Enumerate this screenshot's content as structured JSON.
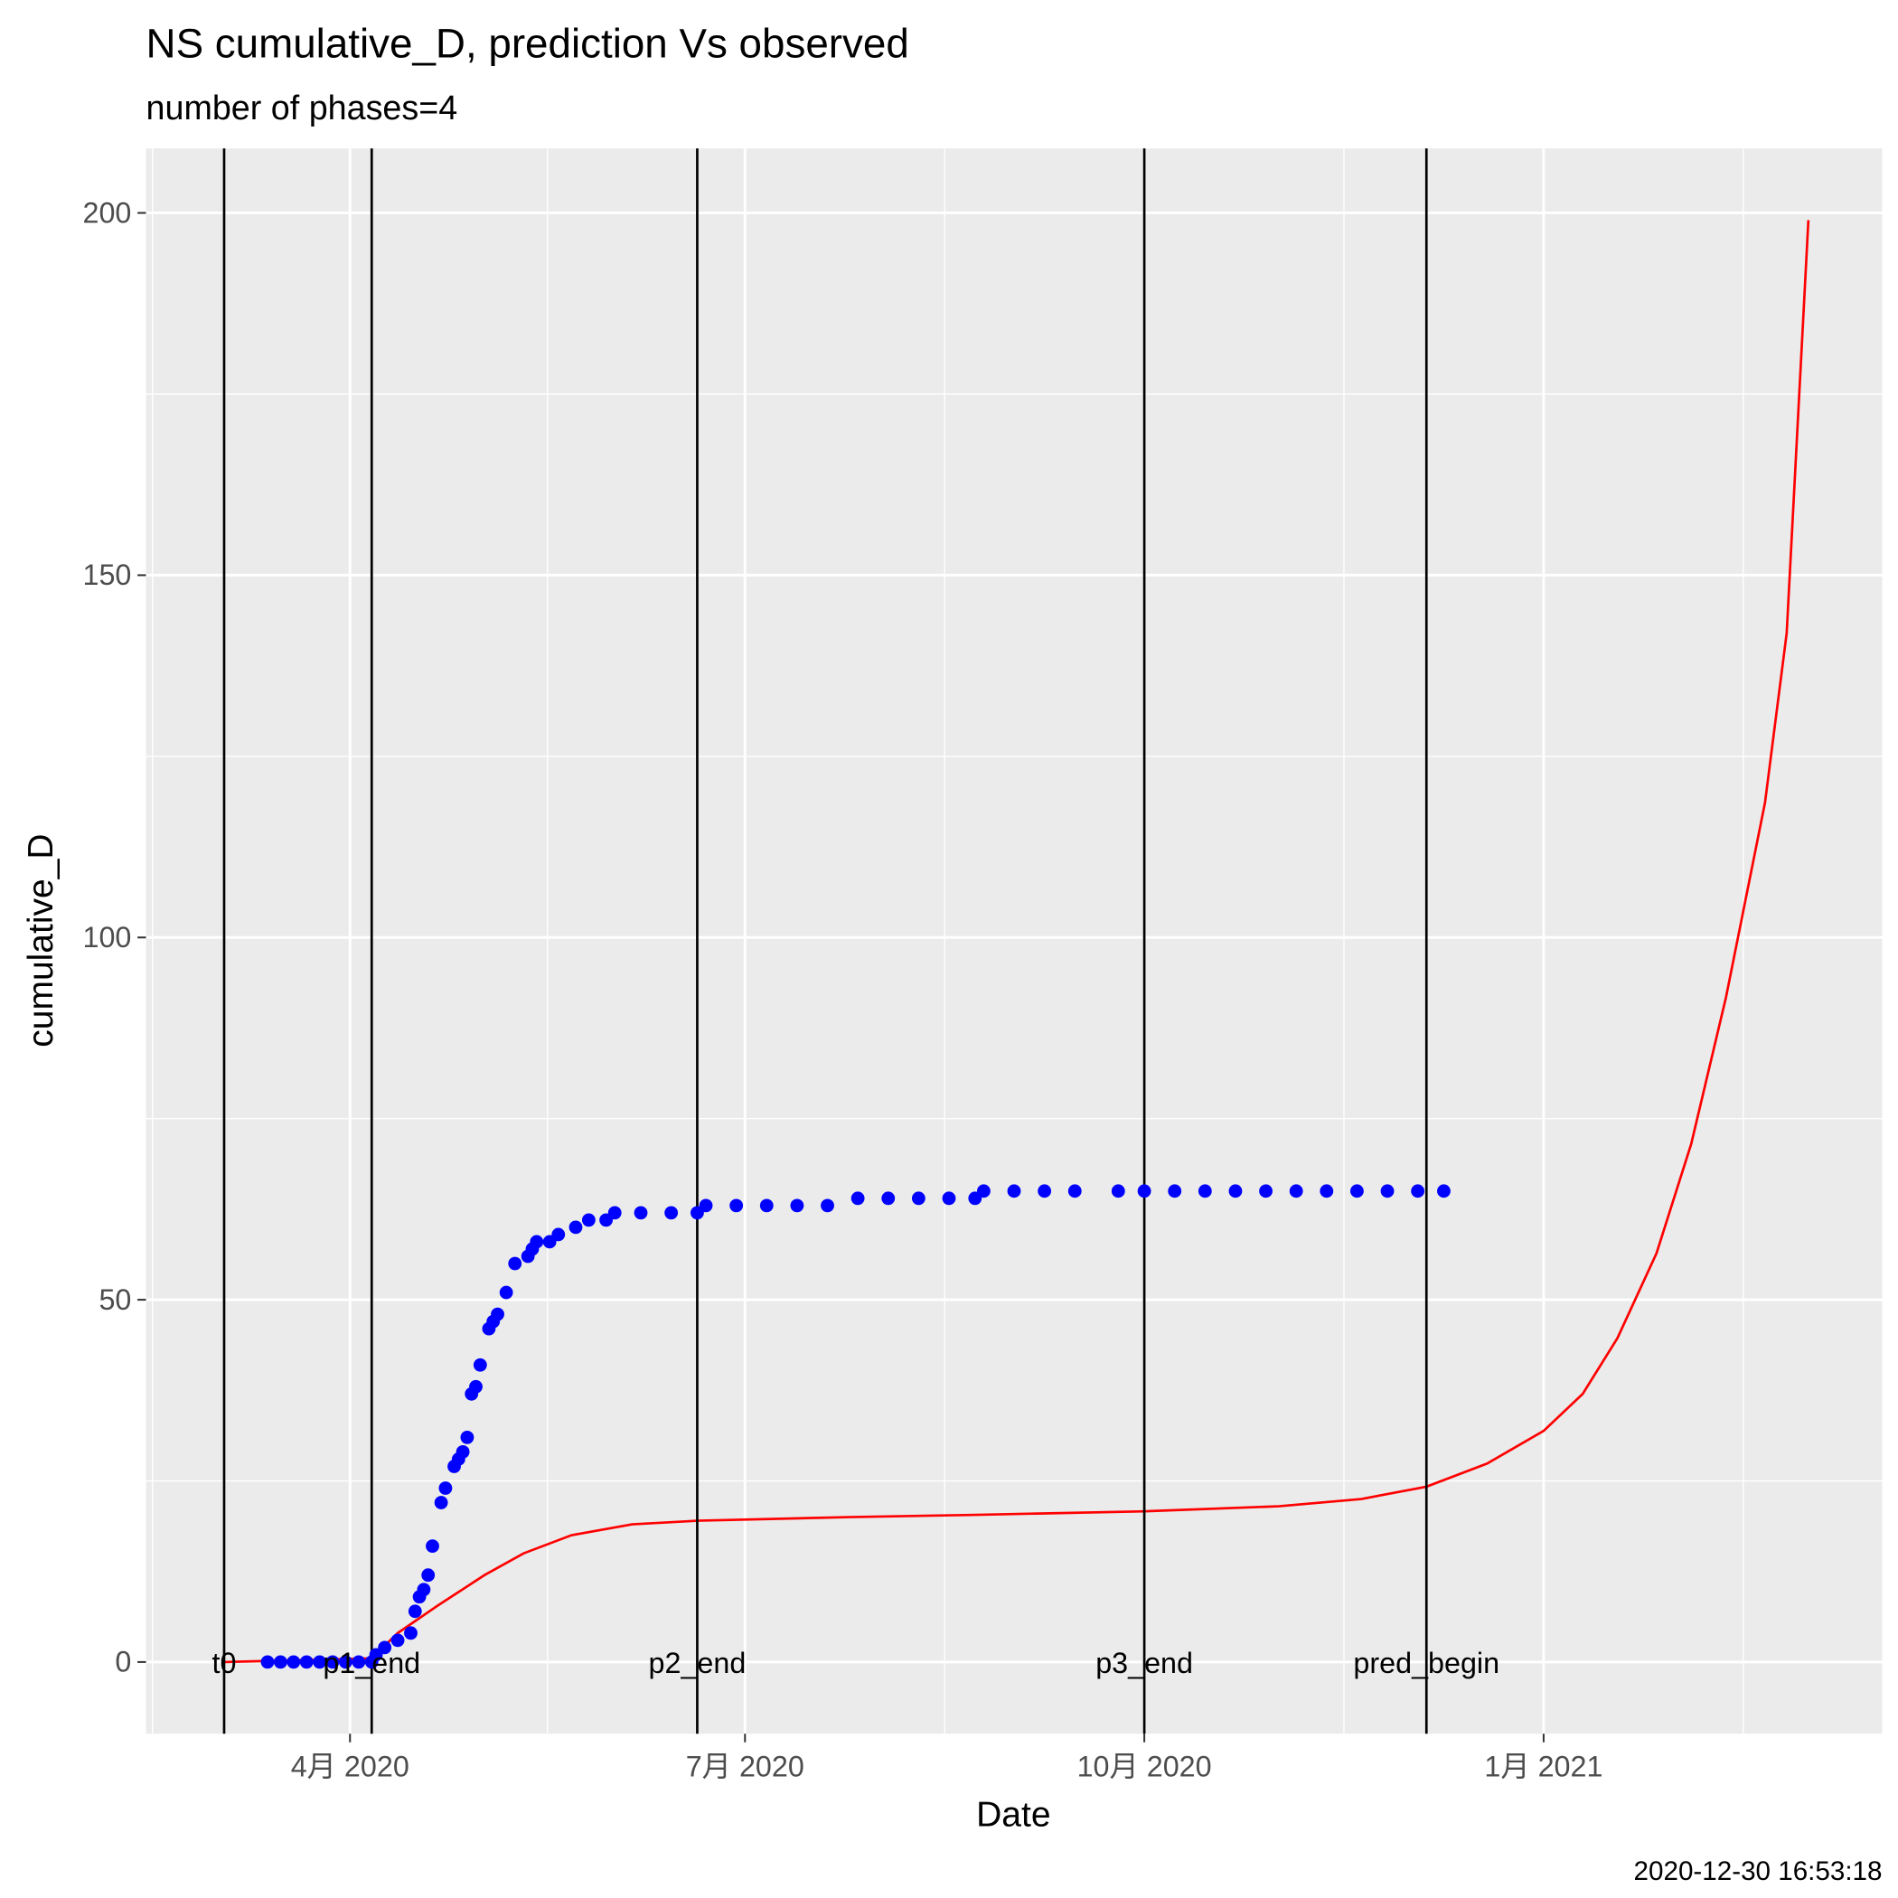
{
  "chart_data": {
    "type": "line",
    "title": "NS cumulative_D,  prediction Vs observed",
    "subtitle": "number of phases=4",
    "x_label": "Date",
    "y_label": "cumulative_D",
    "caption": "2020-12-30 16:53:18",
    "grid": true,
    "xlim": [
      "2020-02-14",
      "2021-03-20"
    ],
    "xticks": [
      {
        "value": "2020-04-01",
        "label": "4月 2020"
      },
      {
        "value": "2020-07-01",
        "label": "7月 2020"
      },
      {
        "value": "2020-10-01",
        "label": "10月 2020"
      },
      {
        "value": "2021-01-01",
        "label": "1月 2021"
      }
    ],
    "ylim": [
      -9.9,
      208.9
    ],
    "yticks": [
      0,
      50,
      100,
      150,
      200
    ],
    "vlines": [
      {
        "x": "2020-03-03",
        "label": "t0"
      },
      {
        "x": "2020-04-06",
        "label": "p1_end"
      },
      {
        "x": "2020-06-20",
        "label": "p2_end"
      },
      {
        "x": "2020-10-01",
        "label": "p3_end"
      },
      {
        "x": "2020-12-05",
        "label": "pred_begin"
      }
    ],
    "series": [
      {
        "kind": "line",
        "color": "#ff0000",
        "x": [
          "2020-03-03",
          "2020-04-06",
          "2020-04-12",
          "2020-04-21",
          "2020-05-02",
          "2020-05-11",
          "2020-05-22",
          "2020-06-05",
          "2020-06-20",
          "2020-07-25",
          "2020-08-22",
          "2020-10-01",
          "2020-11-01",
          "2020-11-20",
          "2020-12-05",
          "2020-12-19",
          "2021-01-01",
          "2021-01-10",
          "2021-01-18",
          "2021-01-27",
          "2021-02-04",
          "2021-02-12",
          "2021-02-21",
          "2021-02-26",
          "2021-03-03"
        ],
        "values": [
          0,
          0.5,
          4,
          7.7,
          12,
          15,
          17.5,
          19,
          19.5,
          20,
          20.3,
          20.8,
          21.5,
          22.5,
          24.2,
          27.4,
          31.9,
          37,
          44.7,
          56.4,
          71.5,
          91.7,
          118.6,
          142,
          199
        ]
      },
      {
        "kind": "points",
        "color": "#0000ff",
        "x": [
          "2020-03-13",
          "2020-03-16",
          "2020-03-19",
          "2020-03-22",
          "2020-03-25",
          "2020-03-28",
          "2020-03-31",
          "2020-04-03",
          "2020-04-06",
          "2020-04-07",
          "2020-04-09",
          "2020-04-12",
          "2020-04-15",
          "2020-04-16",
          "2020-04-17",
          "2020-04-18",
          "2020-04-19",
          "2020-04-20",
          "2020-04-22",
          "2020-04-23",
          "2020-04-25",
          "2020-04-26",
          "2020-04-27",
          "2020-04-28",
          "2020-04-29",
          "2020-04-30",
          "2020-05-01",
          "2020-05-03",
          "2020-05-04",
          "2020-05-05",
          "2020-05-07",
          "2020-05-09",
          "2020-05-12",
          "2020-05-13",
          "2020-05-14",
          "2020-05-17",
          "2020-05-19",
          "2020-05-23",
          "2020-05-26",
          "2020-05-30",
          "2020-06-01",
          "2020-06-07",
          "2020-06-14",
          "2020-06-20",
          "2020-06-22",
          "2020-06-29",
          "2020-07-06",
          "2020-07-13",
          "2020-07-20",
          "2020-07-27",
          "2020-08-03",
          "2020-08-10",
          "2020-08-17",
          "2020-08-23",
          "2020-08-25",
          "2020-09-01",
          "2020-09-08",
          "2020-09-15",
          "2020-09-25",
          "2020-10-01",
          "2020-10-08",
          "2020-10-15",
          "2020-10-22",
          "2020-10-29",
          "2020-11-05",
          "2020-11-12",
          "2020-11-19",
          "2020-11-26",
          "2020-12-03",
          "2020-12-09"
        ],
        "values": [
          0,
          0,
          0,
          0,
          0,
          0,
          0,
          0,
          0,
          1,
          2,
          3,
          4,
          7,
          9,
          10,
          12,
          16,
          22,
          24,
          27,
          28,
          29,
          31,
          37,
          38,
          41,
          46,
          47,
          48,
          51,
          55,
          56,
          57,
          58,
          58,
          59,
          60,
          61,
          61,
          62,
          62,
          62,
          62,
          63,
          63,
          63,
          63,
          63,
          64,
          64,
          64,
          64,
          64,
          65,
          65,
          65,
          65,
          65,
          65,
          65,
          65,
          65,
          65,
          65,
          65,
          65,
          65,
          65,
          65
        ]
      }
    ]
  }
}
